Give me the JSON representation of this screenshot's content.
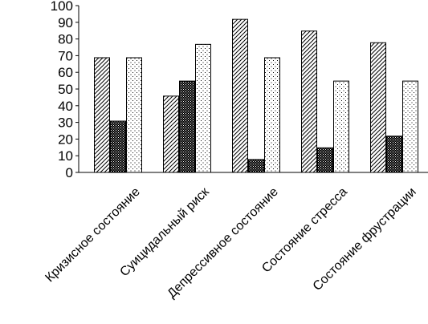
{
  "chart_data": {
    "type": "bar",
    "title": "",
    "xlabel": "",
    "ylabel": "",
    "ylim": [
      0,
      100
    ],
    "yticks": [
      0,
      10,
      20,
      30,
      40,
      50,
      60,
      70,
      80,
      90,
      100
    ],
    "grid": false,
    "legend": "none",
    "categories": [
      "Кризисное состояние",
      "Суицидальный риск",
      "Депрессивное состояние",
      "Состояние стресса",
      "Состояние фрустрации"
    ],
    "series": [
      {
        "pattern": "diagonal-hatch",
        "values": [
          69,
          46,
          92,
          85,
          78
        ]
      },
      {
        "pattern": "dense-dots",
        "values": [
          31,
          55,
          8,
          15,
          22
        ]
      },
      {
        "pattern": "sparse-dots",
        "values": [
          69,
          77,
          69,
          55,
          55
        ]
      }
    ]
  }
}
